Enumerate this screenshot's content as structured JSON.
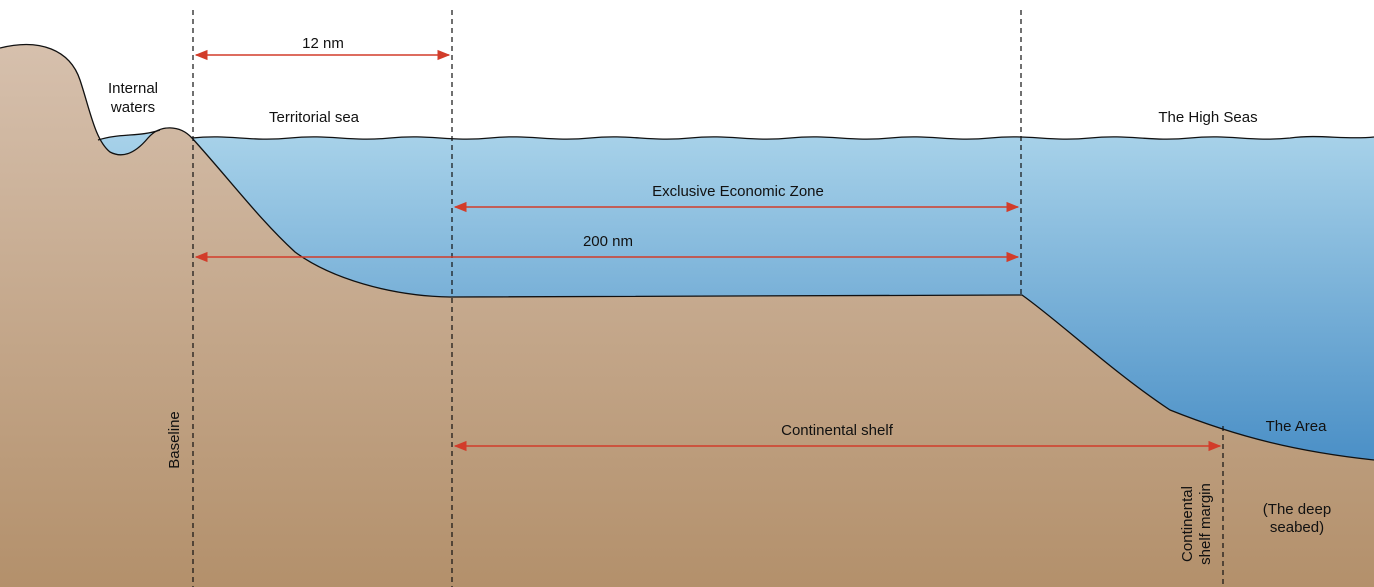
{
  "colors": {
    "water_top": "#a9d3ea",
    "water_bottom": "#4a8fc6",
    "land_top": "#d6c0ad",
    "land_bottom": "#b3906b",
    "arrow": "#d23c2a",
    "line": "#111111"
  },
  "labels": {
    "internal_waters_1": "Internal",
    "internal_waters_2": "waters",
    "territorial_sea": "Territorial sea",
    "high_seas": "The High Seas",
    "twelve_nm": "12 nm",
    "eez": "Exclusive Economic Zone",
    "two_hundred_nm": "200 nm",
    "continental_shelf": "Continental shelf",
    "the_area": "The Area",
    "baseline": "Baseline",
    "shelf_margin_1": "Continental",
    "shelf_margin_2": "shelf margin",
    "deep_seabed_1": "(The deep",
    "deep_seabed_2": "seabed)"
  }
}
